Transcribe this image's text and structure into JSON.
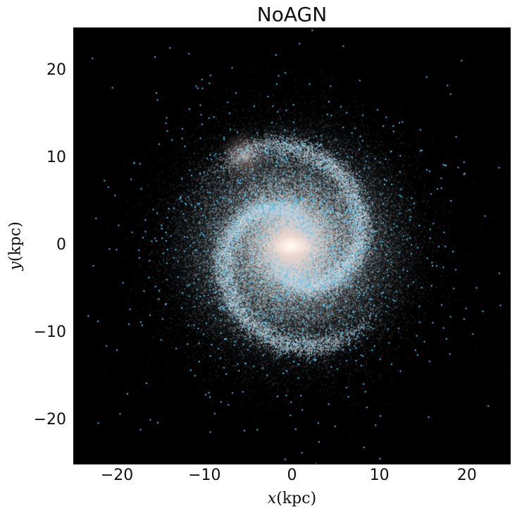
{
  "title": "NoAGN",
  "axes": {
    "xlabel_var": "x",
    "xlabel_unit": "(kpc)",
    "ylabel_var": "y",
    "ylabel_unit": "(kpc)",
    "xlim": [
      -25,
      25
    ],
    "ylim": [
      -25,
      25
    ],
    "xticks": [
      "−20",
      "−10",
      "0",
      "10",
      "20"
    ],
    "yticks": [
      "20",
      "10",
      "0",
      "−10",
      "−20"
    ],
    "xtick_values": [
      -20,
      -10,
      0,
      10,
      20
    ],
    "ytick_values": [
      20,
      10,
      0,
      -10,
      -20
    ]
  },
  "colors": {
    "background": "#000000",
    "core": "#f2d9cf",
    "disk": "#9fb6c4",
    "young_stars": "#4fc3f0",
    "satellite": "#b89a92"
  }
}
